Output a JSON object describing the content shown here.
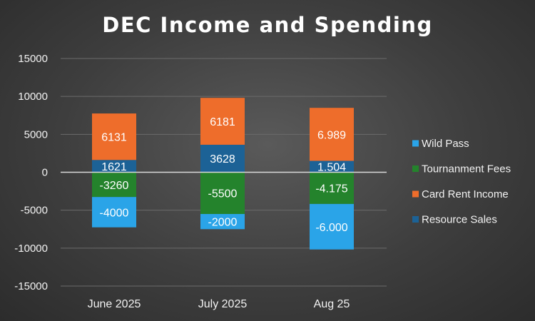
{
  "chart_data": {
    "type": "bar",
    "stacked": true,
    "title": "DEC Income and Spending",
    "xlabel": "",
    "ylabel": "",
    "ylim": [
      -15000,
      15000
    ],
    "yticks": [
      15000,
      10000,
      5000,
      0,
      -5000,
      -10000,
      -15000
    ],
    "ytick_labels": [
      "15000",
      "10000",
      "5000",
      "0",
      "-5000",
      "-10000",
      "-15000"
    ],
    "grid": true,
    "legend_position": "right",
    "categories": [
      "June 2025",
      "July 2025",
      "Aug 25"
    ],
    "series": [
      {
        "name": "Wild Pass",
        "color": "#2aa4e8",
        "values": [
          -4000,
          -2000,
          -6000
        ],
        "labels": [
          "-4000",
          "-2000",
          "-6.000"
        ]
      },
      {
        "name": "Tournanment Fees",
        "color": "#24832c",
        "values": [
          -3260,
          -5500,
          -4175
        ],
        "labels": [
          "-3260",
          "-5500",
          "-4.175"
        ]
      },
      {
        "name": "Card Rent Income",
        "color": "#ee6d2b",
        "values": [
          6131,
          6181,
          6989
        ],
        "labels": [
          "6131",
          "6181",
          "6.989"
        ]
      },
      {
        "name": "Resource Sales",
        "color": "#1c6296",
        "values": [
          1621,
          3628,
          1504
        ],
        "labels": [
          "1621",
          "3628",
          "1.504"
        ]
      }
    ],
    "stack_order_positive": [
      "Resource Sales",
      "Card Rent Income"
    ],
    "stack_order_negative": [
      "Tournanment Fees",
      "Wild Pass"
    ],
    "legend_order": [
      "Wild Pass",
      "Tournanment Fees",
      "Card Rent Income",
      "Resource Sales"
    ]
  }
}
